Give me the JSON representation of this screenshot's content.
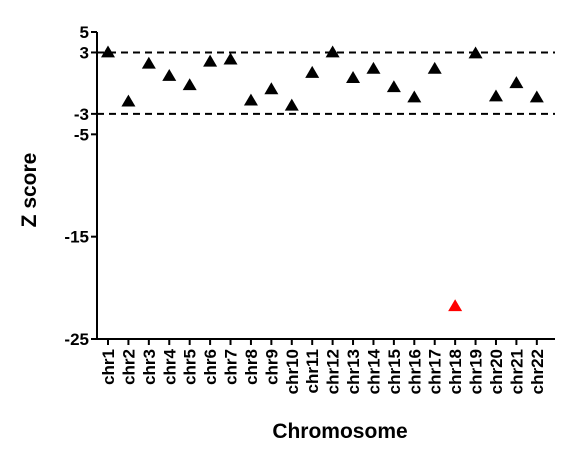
{
  "chart_data": {
    "type": "scatter",
    "xlabel": "Chromosome",
    "ylabel": "Z score",
    "ylim": [
      -25,
      5
    ],
    "yticks": [
      "5",
      "3",
      "-3",
      "-5",
      "-15",
      "-25"
    ],
    "ytick_values": [
      5,
      3,
      -3,
      -5,
      -15,
      -25
    ],
    "reference_lines": [
      3,
      -3
    ],
    "reference_line_style": "dashed",
    "grid": false,
    "marker": "triangle",
    "colors": {
      "default": "#000000",
      "highlight": "#ff0000"
    },
    "categories": [
      "chr1",
      "chr2",
      "chr3",
      "chr4",
      "chr5",
      "chr6",
      "chr7",
      "chr8",
      "chr9",
      "chr10",
      "chr11",
      "chr12",
      "chr13",
      "chr14",
      "chr15",
      "chr16",
      "chr17",
      "chr18",
      "chr19",
      "chr20",
      "chr21",
      "chr22"
    ],
    "values": [
      3.0,
      -1.8,
      1.9,
      0.7,
      -0.2,
      2.1,
      2.3,
      -1.7,
      -0.6,
      -2.2,
      1.0,
      3.0,
      0.5,
      1.4,
      -0.4,
      -1.4,
      1.4,
      -21.8,
      2.9,
      -1.3,
      0.0,
      -1.4
    ],
    "highlight": [
      "chr18"
    ]
  }
}
